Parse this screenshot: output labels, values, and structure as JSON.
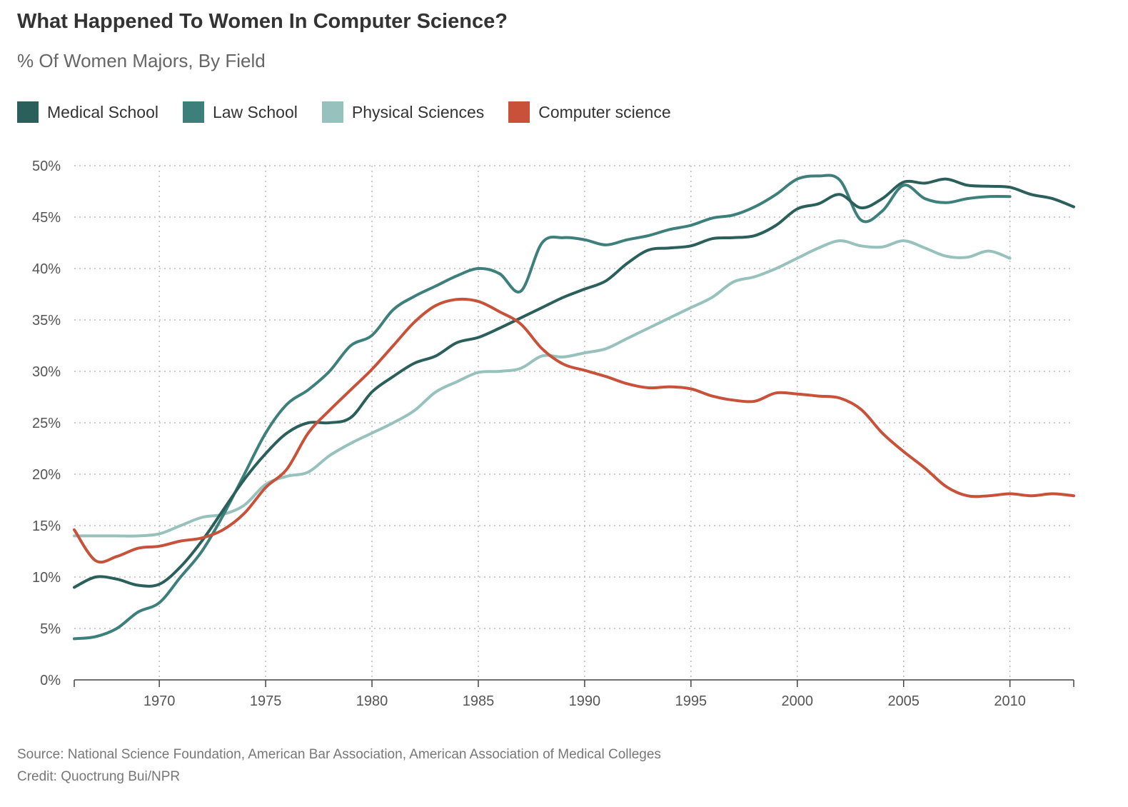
{
  "title": "What Happened To Women In Computer Science?",
  "subtitle": "% Of Women Majors, By Field",
  "footer": {
    "source": "Source: National Science Foundation, American Bar Association, American Association of Medical Colleges",
    "credit": "Credit: Quoctrung Bui/NPR"
  },
  "chart_data": {
    "type": "line",
    "title": "What Happened To Women In Computer Science?",
    "subtitle": "% Of Women Majors, By Field",
    "xlabel": "",
    "ylabel": "",
    "xlim": [
      1966,
      2013
    ],
    "ylim": [
      0,
      50
    ],
    "grid": true,
    "legend_position": "top-left",
    "x_ticks": [
      1970,
      1975,
      1980,
      1985,
      1990,
      1995,
      2000,
      2005,
      2010
    ],
    "y_ticks": [
      0,
      5,
      10,
      15,
      20,
      25,
      30,
      35,
      40,
      45,
      50
    ],
    "y_tick_labels": [
      "0%",
      "5%",
      "10%",
      "15%",
      "20%",
      "25%",
      "30%",
      "35%",
      "40%",
      "45%",
      "50%"
    ],
    "series": [
      {
        "name": "Medical School",
        "color": "#2b5f5b",
        "points": [
          [
            1966,
            9
          ],
          [
            1967,
            10
          ],
          [
            1968,
            9.8
          ],
          [
            1969,
            9.2
          ],
          [
            1970,
            9.3
          ],
          [
            1971,
            11
          ],
          [
            1972,
            13.5
          ],
          [
            1973,
            16.5
          ],
          [
            1974,
            19.5
          ],
          [
            1975,
            22
          ],
          [
            1976,
            24
          ],
          [
            1977,
            25
          ],
          [
            1978,
            25
          ],
          [
            1979,
            25.5
          ],
          [
            1980,
            28
          ],
          [
            1981,
            29.5
          ],
          [
            1982,
            30.8
          ],
          [
            1983,
            31.5
          ],
          [
            1984,
            32.8
          ],
          [
            1985,
            33.3
          ],
          [
            1986,
            34.2
          ],
          [
            1987,
            35.2
          ],
          [
            1988,
            36.2
          ],
          [
            1989,
            37.2
          ],
          [
            1990,
            38
          ],
          [
            1991,
            38.8
          ],
          [
            1992,
            40.5
          ],
          [
            1993,
            41.8
          ],
          [
            1994,
            42
          ],
          [
            1995,
            42.2
          ],
          [
            1996,
            42.9
          ],
          [
            1997,
            43
          ],
          [
            1998,
            43.2
          ],
          [
            1999,
            44.2
          ],
          [
            2000,
            45.8
          ],
          [
            2001,
            46.3
          ],
          [
            2002,
            47.2
          ],
          [
            2003,
            45.9
          ],
          [
            2004,
            46.8
          ],
          [
            2005,
            48.4
          ],
          [
            2006,
            48.3
          ],
          [
            2007,
            48.7
          ],
          [
            2008,
            48.1
          ],
          [
            2009,
            48
          ],
          [
            2010,
            47.9
          ],
          [
            2011,
            47.2
          ],
          [
            2012,
            46.8
          ],
          [
            2013,
            46
          ]
        ]
      },
      {
        "name": "Law School",
        "color": "#3c7f7b",
        "points": [
          [
            1966,
            4
          ],
          [
            1967,
            4.2
          ],
          [
            1968,
            5
          ],
          [
            1969,
            6.6
          ],
          [
            1970,
            7.5
          ],
          [
            1971,
            10
          ],
          [
            1972,
            12.5
          ],
          [
            1973,
            16
          ],
          [
            1974,
            20
          ],
          [
            1975,
            24
          ],
          [
            1976,
            26.8
          ],
          [
            1977,
            28.2
          ],
          [
            1978,
            30
          ],
          [
            1979,
            32.5
          ],
          [
            1980,
            33.5
          ],
          [
            1981,
            36
          ],
          [
            1982,
            37.3
          ],
          [
            1983,
            38.3
          ],
          [
            1984,
            39.3
          ],
          [
            1985,
            40
          ],
          [
            1986,
            39.5
          ],
          [
            1987,
            37.8
          ],
          [
            1988,
            42.5
          ],
          [
            1989,
            43
          ],
          [
            1990,
            42.8
          ],
          [
            1991,
            42.3
          ],
          [
            1992,
            42.8
          ],
          [
            1993,
            43.2
          ],
          [
            1994,
            43.8
          ],
          [
            1995,
            44.2
          ],
          [
            1996,
            44.9
          ],
          [
            1997,
            45.2
          ],
          [
            1998,
            46
          ],
          [
            1999,
            47.2
          ],
          [
            2000,
            48.7
          ],
          [
            2001,
            49
          ],
          [
            2002,
            48.6
          ],
          [
            2003,
            44.7
          ],
          [
            2004,
            45.6
          ],
          [
            2005,
            48.1
          ],
          [
            2006,
            46.8
          ],
          [
            2007,
            46.4
          ],
          [
            2008,
            46.8
          ],
          [
            2009,
            47
          ],
          [
            2010,
            47
          ]
        ]
      },
      {
        "name": "Physical Sciences",
        "color": "#97c1bd",
        "points": [
          [
            1966,
            14
          ],
          [
            1967,
            14
          ],
          [
            1968,
            14
          ],
          [
            1969,
            14
          ],
          [
            1970,
            14.2
          ],
          [
            1971,
            15
          ],
          [
            1972,
            15.8
          ],
          [
            1973,
            16.1
          ],
          [
            1974,
            17
          ],
          [
            1975,
            19
          ],
          [
            1976,
            19.8
          ],
          [
            1977,
            20.2
          ],
          [
            1978,
            21.8
          ],
          [
            1979,
            23
          ],
          [
            1980,
            24
          ],
          [
            1981,
            25
          ],
          [
            1982,
            26.2
          ],
          [
            1983,
            28
          ],
          [
            1984,
            29
          ],
          [
            1985,
            29.9
          ],
          [
            1986,
            30
          ],
          [
            1987,
            30.3
          ],
          [
            1988,
            31.5
          ],
          [
            1989,
            31.4
          ],
          [
            1990,
            31.8
          ],
          [
            1991,
            32.2
          ],
          [
            1992,
            33.2
          ],
          [
            1993,
            34.2
          ],
          [
            1994,
            35.2
          ],
          [
            1995,
            36.2
          ],
          [
            1996,
            37.2
          ],
          [
            1997,
            38.7
          ],
          [
            1998,
            39.2
          ],
          [
            1999,
            40
          ],
          [
            2000,
            41
          ],
          [
            2001,
            42
          ],
          [
            2002,
            42.7
          ],
          [
            2003,
            42.2
          ],
          [
            2004,
            42.1
          ],
          [
            2005,
            42.7
          ],
          [
            2006,
            42
          ],
          [
            2007,
            41.2
          ],
          [
            2008,
            41.1
          ],
          [
            2009,
            41.7
          ],
          [
            2010,
            41
          ]
        ]
      },
      {
        "name": "Computer science",
        "color": "#c8513a",
        "points": [
          [
            1966,
            14.6
          ],
          [
            1967,
            11.6
          ],
          [
            1968,
            12
          ],
          [
            1969,
            12.8
          ],
          [
            1970,
            13
          ],
          [
            1971,
            13.5
          ],
          [
            1972,
            13.8
          ],
          [
            1973,
            14.6
          ],
          [
            1974,
            16.2
          ],
          [
            1975,
            18.7
          ],
          [
            1976,
            20.5
          ],
          [
            1977,
            24
          ],
          [
            1978,
            26.2
          ],
          [
            1979,
            28.2
          ],
          [
            1980,
            30.2
          ],
          [
            1981,
            32.5
          ],
          [
            1982,
            34.8
          ],
          [
            1983,
            36.4
          ],
          [
            1984,
            37
          ],
          [
            1985,
            36.8
          ],
          [
            1986,
            35.8
          ],
          [
            1987,
            34.6
          ],
          [
            1988,
            32.2
          ],
          [
            1989,
            30.7
          ],
          [
            1990,
            30.1
          ],
          [
            1991,
            29.5
          ],
          [
            1992,
            28.8
          ],
          [
            1993,
            28.4
          ],
          [
            1994,
            28.5
          ],
          [
            1995,
            28.3
          ],
          [
            1996,
            27.6
          ],
          [
            1997,
            27.2
          ],
          [
            1998,
            27.1
          ],
          [
            1999,
            27.9
          ],
          [
            2000,
            27.8
          ],
          [
            2001,
            27.6
          ],
          [
            2002,
            27.4
          ],
          [
            2003,
            26.3
          ],
          [
            2004,
            24
          ],
          [
            2005,
            22.2
          ],
          [
            2006,
            20.6
          ],
          [
            2007,
            18.8
          ],
          [
            2008,
            17.9
          ],
          [
            2009,
            17.9
          ],
          [
            2010,
            18.1
          ],
          [
            2011,
            17.9
          ],
          [
            2012,
            18.1
          ],
          [
            2013,
            17.9
          ]
        ]
      }
    ]
  }
}
